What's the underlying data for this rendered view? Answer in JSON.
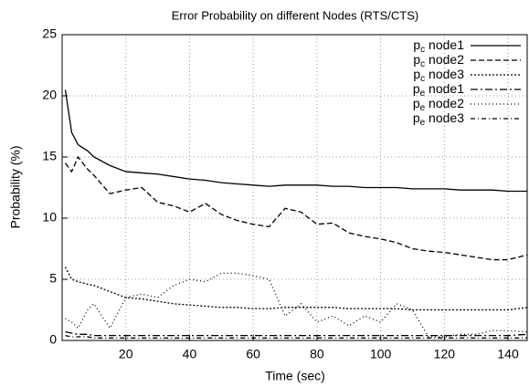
{
  "chart_data": {
    "type": "line",
    "title": "Error Probability on different Nodes (RTS/CTS)",
    "xlabel": "Time (sec)",
    "ylabel": "Probability (%)",
    "x": [
      1,
      3,
      5,
      8,
      10,
      15,
      20,
      25,
      30,
      35,
      40,
      45,
      50,
      55,
      60,
      65,
      70,
      75,
      80,
      85,
      90,
      95,
      100,
      105,
      110,
      115,
      120,
      125,
      130,
      135,
      140,
      146
    ],
    "series": [
      {
        "name": "pc node1",
        "color": "#000000",
        "dash": "none",
        "values": [
          20.5,
          17,
          16,
          15.5,
          15,
          14.3,
          13.8,
          13.7,
          13.6,
          13.4,
          13.2,
          13.1,
          12.9,
          12.8,
          12.7,
          12.6,
          12.7,
          12.7,
          12.7,
          12.6,
          12.6,
          12.5,
          12.5,
          12.5,
          12.4,
          12.4,
          12.4,
          12.3,
          12.3,
          12.3,
          12.2,
          12.2
        ]
      },
      {
        "name": "pc node2",
        "color": "#000000",
        "dash": "6,3",
        "values": [
          14.5,
          13.8,
          15,
          14,
          13.5,
          12,
          12.3,
          12.5,
          11.3,
          11,
          10.5,
          11.2,
          10.3,
          9.8,
          9.5,
          9.3,
          10.8,
          10.5,
          9.5,
          9.6,
          8.8,
          8.5,
          8.3,
          8,
          7.5,
          7.3,
          7.2,
          7,
          6.8,
          6.6,
          6.6,
          7
        ]
      },
      {
        "name": "pc node3",
        "color": "#000000",
        "dash": "2,2",
        "values": [
          6,
          5,
          4.8,
          4.6,
          4.5,
          4,
          3.5,
          3.4,
          3.2,
          3,
          2.9,
          2.8,
          2.7,
          2.7,
          2.6,
          2.6,
          2.7,
          2.7,
          2.7,
          2.7,
          2.6,
          2.6,
          2.6,
          2.6,
          2.5,
          2.5,
          2.5,
          2.5,
          2.5,
          2.5,
          2.5,
          2.7
        ]
      },
      {
        "name": "pe node1",
        "color": "#000000",
        "dash": "8,3,2,3",
        "values": [
          0.7,
          0.6,
          0.5,
          0.5,
          0.4,
          0.4,
          0.4,
          0.4,
          0.4,
          0.4,
          0.4,
          0.4,
          0.4,
          0.4,
          0.4,
          0.4,
          0.4,
          0.4,
          0.4,
          0.4,
          0.4,
          0.4,
          0.4,
          0.4,
          0.4,
          0.4,
          0.4,
          0.4,
          0.4,
          0.4,
          0.4,
          0.5
        ]
      },
      {
        "name": "pe node2",
        "color": "#000000",
        "dash": "1,3",
        "values": [
          1.8,
          1.5,
          1,
          2.5,
          3,
          1,
          3.5,
          3.8,
          3.5,
          4.5,
          5,
          4.8,
          5.5,
          5.5,
          5.3,
          5,
          2,
          3,
          1.5,
          2,
          1.2,
          2,
          1.5,
          3,
          2.5,
          0.3,
          0.3,
          0.5,
          0.5,
          0.8,
          0.8,
          0.7
        ]
      },
      {
        "name": "pe node3",
        "color": "#000000",
        "dash": "5,3,1,3",
        "values": [
          0.4,
          0.3,
          0.3,
          0.3,
          0.2,
          0.2,
          0.2,
          0.2,
          0.2,
          0.2,
          0.2,
          0.2,
          0.2,
          0.2,
          0.2,
          0.2,
          0.2,
          0.2,
          0.2,
          0.2,
          0.2,
          0.2,
          0.2,
          0.2,
          0.2,
          0.2,
          0.2,
          0.2,
          0.2,
          0.2,
          0.2,
          0.2
        ]
      }
    ],
    "xlim": [
      0,
      146
    ],
    "ylim": [
      0,
      25
    ],
    "xticks": [
      20,
      40,
      60,
      80,
      100,
      120,
      140
    ],
    "yticks": [
      0,
      5,
      10,
      15,
      20,
      25
    ],
    "grid": true,
    "legend": "upper-right"
  }
}
